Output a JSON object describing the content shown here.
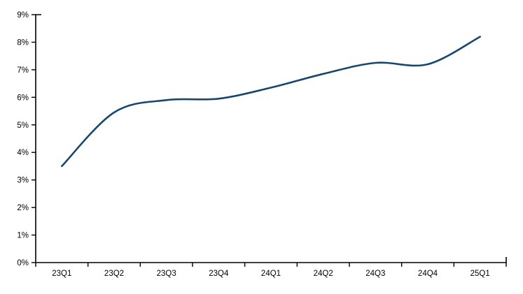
{
  "chart": {
    "title": "",
    "background_color": "#ffffff"
  },
  "chart_data": {
    "type": "line",
    "categories": [
      "23Q1",
      "23Q2",
      "23Q3",
      "23Q4",
      "24Q1",
      "24Q2",
      "24Q3",
      "24Q4",
      "25Q1"
    ],
    "values": [
      3.5,
      5.45,
      5.9,
      5.95,
      6.35,
      6.85,
      7.25,
      7.2,
      8.2
    ],
    "unit": "%",
    "title": "",
    "xlabel": "",
    "ylabel": "",
    "ylim": [
      0,
      9
    ],
    "y_ticks": [
      0,
      1,
      2,
      3,
      4,
      5,
      6,
      7,
      8,
      9
    ],
    "y_tick_labels": [
      "0%",
      "1%",
      "2%",
      "3%",
      "4%",
      "5%",
      "6%",
      "7%",
      "8%",
      "9%"
    ],
    "grid": "off",
    "legend": "none",
    "smooth": true,
    "line_color": "#17466F",
    "axis_color": "#000000",
    "label_color": "#000000"
  }
}
